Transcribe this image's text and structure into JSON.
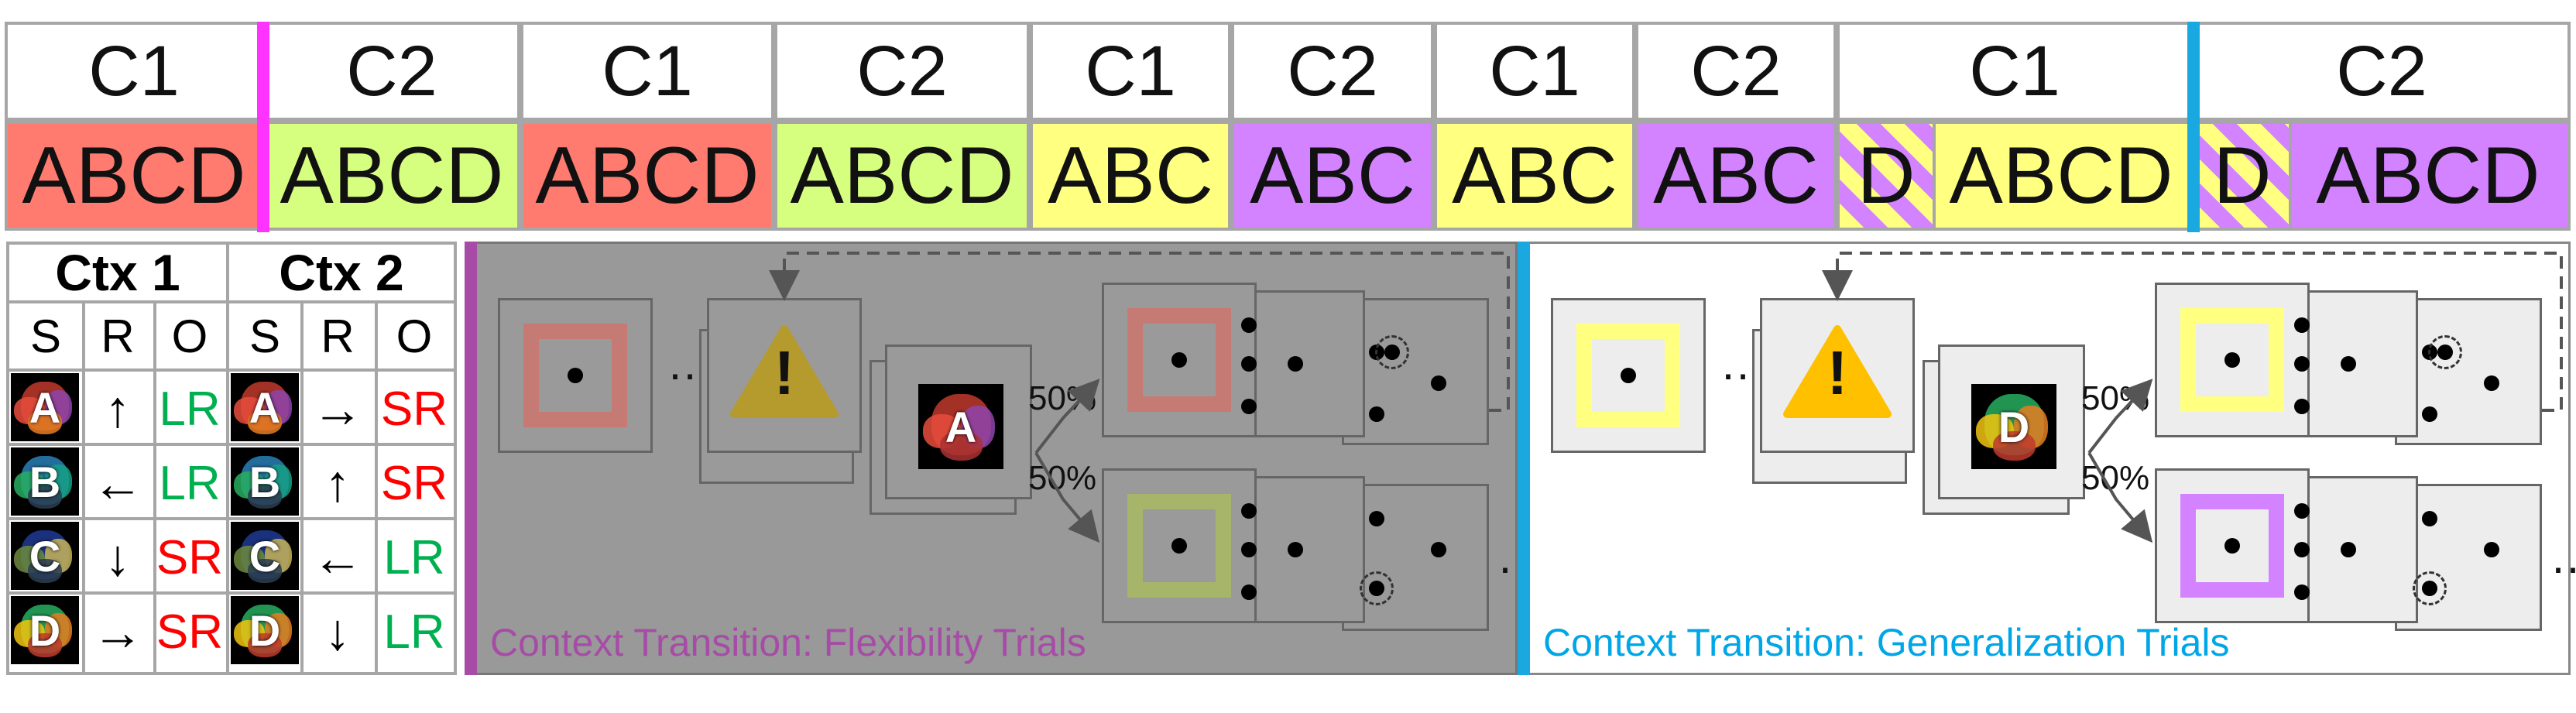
{
  "colors": {
    "red": "#ff7b70",
    "green": "#d6ff80",
    "yellow": "#ffff80",
    "purple": "#d383ff",
    "magenta_divider": "#ff33ff",
    "blue_divider": "#1aa8e0",
    "flex_title": "#a64ca6",
    "gen_title": "#00a6e6",
    "lr_green": "#00b050",
    "sr_red": "#ff0000"
  },
  "timeline": {
    "segments": [
      {
        "ctx": "C1",
        "stim": "ABCD",
        "color": "red"
      },
      {
        "ctx": "C2",
        "stim": "ABCD",
        "color": "green"
      },
      {
        "ctx": "C1",
        "stim": "ABCD",
        "color": "red"
      },
      {
        "ctx": "C2",
        "stim": "ABCD",
        "color": "green"
      },
      {
        "ctx": "C1",
        "stim": "ABC",
        "color": "yellow"
      },
      {
        "ctx": "C2",
        "stim": "ABC",
        "color": "purple"
      },
      {
        "ctx": "C1",
        "stim": "ABC",
        "color": "yellow"
      },
      {
        "ctx": "C2",
        "stim": "ABC",
        "color": "purple"
      },
      {
        "ctx": "C1",
        "stim": "ABCD",
        "color": "yellow",
        "prefix": "D"
      },
      {
        "ctx": "C2",
        "stim": "ABCD",
        "color": "purple",
        "prefix": "D"
      }
    ]
  },
  "mapping": {
    "ctx1": "Ctx 1",
    "ctx2": "Ctx 2",
    "cols": [
      "S",
      "R",
      "O"
    ],
    "rows": [
      {
        "s": "A",
        "r1": "↑",
        "o1": "LR",
        "r2": "→",
        "o2": "SR"
      },
      {
        "s": "B",
        "r1": "←",
        "o1": "LR",
        "r2": "↑",
        "o2": "SR"
      },
      {
        "s": "C",
        "r1": "↓",
        "o1": "SR",
        "r2": "←",
        "o2": "LR"
      },
      {
        "s": "D",
        "r1": "→",
        "o1": "SR",
        "r2": "↓",
        "o2": "LR"
      }
    ]
  },
  "flex_panel": {
    "title": "Context Transition: Flexibility Trials",
    "stim_letter": "A",
    "pct_top": "50%",
    "pct_bottom": "50%",
    "ellipsis": "…",
    "warning_glyph": "!"
  },
  "gen_panel": {
    "title": "Context Transition: Generalization Trials",
    "stim_letter": "D",
    "pct_top": "50%",
    "pct_bottom": "50%",
    "ellipsis": "…",
    "warning_glyph": "!"
  }
}
